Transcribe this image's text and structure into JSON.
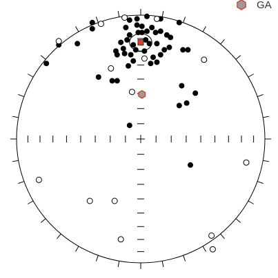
{
  "chart_data": {
    "type": "stereonet",
    "series": [
      {
        "marker": "filled-circle",
        "color": "#000000",
        "x": [
          -0.39,
          -0.39,
          -0.03,
          -0.09,
          0.05,
          0.16,
          0.31,
          -0.12,
          -0.03,
          0.01,
          0.05,
          0.09,
          0.12,
          0.16,
          0.21,
          0.24,
          0.23,
          0.19,
          0.13,
          0.16,
          0.1,
          0.13,
          0.08,
          0.03,
          0.07,
          -0.02,
          -0.09,
          -0.11,
          -0.16,
          -0.14,
          -0.19,
          -0.2,
          -0.13,
          -0.08,
          -0.06,
          -0.1,
          -0.04,
          -0.06,
          0.01,
          -0.51,
          -0.66,
          -0.76,
          -0.34,
          -0.23,
          -0.19,
          0.33,
          0.44,
          0.37,
          0.31,
          -0.09,
          0.4,
          0.34,
          0.38,
          0.04
        ],
        "y": [
          0.94,
          0.89,
          0.97,
          0.96,
          0.99,
          0.97,
          0.94,
          0.9,
          0.92,
          0.91,
          0.87,
          0.9,
          0.86,
          0.87,
          0.84,
          0.82,
          0.74,
          0.72,
          0.77,
          0.68,
          0.66,
          0.62,
          0.61,
          0.71,
          0.77,
          0.86,
          0.84,
          0.8,
          0.78,
          0.73,
          0.68,
          0.71,
          0.69,
          0.68,
          0.63,
          0.59,
          0.72,
          0.76,
          0.86,
          0.77,
          0.76,
          0.61,
          0.5,
          0.47,
          0.47,
          0.43,
          0.37,
          0.29,
          0.27,
          0.11,
          -0.21,
          0.72,
          0.72,
          0.8
        ]
      },
      {
        "marker": "open-circle",
        "color": "#000000",
        "x": [
          -0.13,
          -0.32,
          0.13,
          -0.66,
          -0.24,
          0.03,
          0.51,
          -0.07,
          0.85,
          -0.82,
          -0.41,
          -0.21,
          -0.16,
          0.57,
          0.58
        ],
        "y": [
          0.98,
          0.93,
          0.97,
          0.79,
          0.57,
          0.65,
          0.64,
          0.38,
          -0.19,
          -0.33,
          -0.5,
          -0.5,
          -0.81,
          -0.78,
          -0.89
        ]
      },
      {
        "marker": "square",
        "color": "#e0402a",
        "x": [
          0.0
        ],
        "y": [
          0.78
        ],
        "ellipse": {
          "rx": 0.09,
          "ry": 0.07
        }
      },
      {
        "name": "GA",
        "marker": "hexagon",
        "color": "#9a9a9a",
        "edgecolor": "#d9452b",
        "x": [
          0.01
        ],
        "y": [
          0.36
        ]
      }
    ]
  }
}
